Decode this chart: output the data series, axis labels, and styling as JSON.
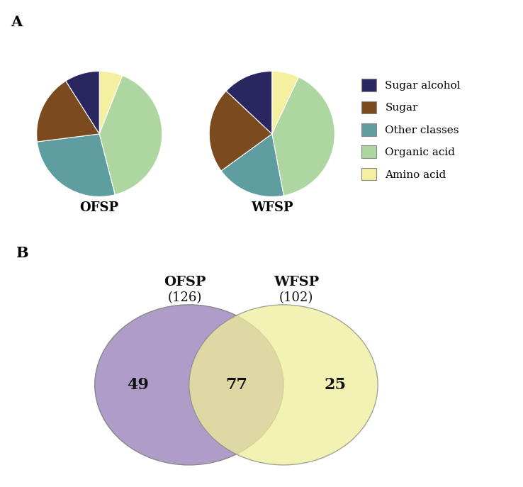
{
  "panel_A_label": "A",
  "panel_B_label": "B",
  "pie_colors": {
    "Sugar alcohol": "#2a2760",
    "Sugar": "#7b4a1e",
    "Other classes": "#5f9ea0",
    "Organic acid": "#aed6a0",
    "Amino acid": "#f5f0a0"
  },
  "legend_order": [
    "Sugar alcohol",
    "Sugar",
    "Other classes",
    "Organic acid",
    "Amino acid"
  ],
  "OFSP": {
    "label": "OFSP",
    "slices_order": [
      "Amino acid",
      "Organic acid",
      "Other classes",
      "Sugar",
      "Sugar alcohol"
    ],
    "sizes": [
      6,
      40,
      27,
      18,
      9
    ],
    "start_angle": 90
  },
  "WFSP": {
    "label": "WFSP",
    "slices_order": [
      "Amino acid",
      "Organic acid",
      "Other classes",
      "Sugar",
      "Sugar alcohol"
    ],
    "sizes": [
      7,
      40,
      18,
      22,
      13
    ],
    "start_angle": 90
  },
  "venn": {
    "ofsp_label": "OFSP",
    "wfsp_label": "WFSP",
    "ofsp_total": "(126)",
    "wfsp_total": "(102)",
    "ofsp_unique": "49",
    "shared": "77",
    "wfsp_unique": "25",
    "ofsp_color": "#b09cc8",
    "wfsp_color": "#eeee99",
    "overlap_color": "#c8aa7a",
    "circle_edge_color": "#888888"
  },
  "bg_color": "#ffffff",
  "title_fontsize": 13,
  "panel_label_fontsize": 15,
  "legend_fontsize": 11,
  "venn_number_fontsize": 16,
  "venn_label_fontsize": 14,
  "venn_total_fontsize": 13
}
